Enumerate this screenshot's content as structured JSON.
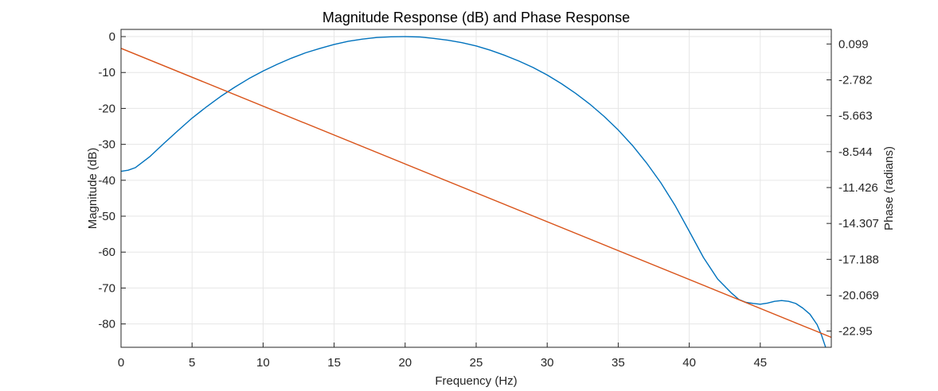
{
  "chart_data": {
    "type": "line",
    "title": "Magnitude Response (dB) and Phase Response",
    "xlabel": "Frequency (Hz)",
    "ylabel_left": "Magnitude (dB)",
    "ylabel_right": "Phase (radians)",
    "xlim": [
      0,
      50
    ],
    "ylim_left": [
      -86.5,
      2
    ],
    "ylim_right": [
      -24.25,
      1.27
    ],
    "x_ticks": [
      0,
      5,
      10,
      15,
      20,
      25,
      30,
      35,
      40,
      45
    ],
    "y_ticks_left": [
      0,
      -10,
      -20,
      -30,
      -40,
      -50,
      -60,
      -70,
      -80
    ],
    "y_ticks_right": [
      0.099,
      -2.782,
      -5.663,
      -8.544,
      -11.426,
      -14.307,
      -17.188,
      -20.069,
      -22.95
    ],
    "y_tick_labels_right": [
      "0.099",
      "-2.782",
      "-5.663",
      "-8.544",
      "-11.426",
      "-14.307",
      "-17.188",
      "-20.069",
      "-22.95"
    ],
    "grid": true,
    "series": [
      {
        "axis": "left",
        "color": "#0072BD",
        "x": [
          0,
          0.5,
          1,
          2,
          3,
          4,
          5,
          6,
          7,
          8,
          9,
          10,
          11,
          12,
          13,
          14,
          15,
          16,
          17,
          18,
          19,
          20,
          21,
          22,
          23,
          24,
          25,
          26,
          27,
          28,
          29,
          30,
          31,
          32,
          33,
          34,
          35,
          36,
          37,
          38,
          39,
          40,
          41,
          42,
          43,
          43.5,
          44,
          44.5,
          45,
          45.5,
          46,
          46.5,
          47,
          47.5,
          48,
          48.5,
          49,
          49.3,
          49.6
        ],
        "y": [
          -37.5,
          -37.2,
          -36.5,
          -33.5,
          -29.8,
          -26.2,
          -22.7,
          -19.6,
          -16.7,
          -14.1,
          -11.7,
          -9.6,
          -7.7,
          -6.0,
          -4.5,
          -3.3,
          -2.2,
          -1.3,
          -0.7,
          -0.25,
          -0.05,
          0,
          -0.1,
          -0.5,
          -1.0,
          -1.7,
          -2.6,
          -3.8,
          -5.2,
          -6.8,
          -8.6,
          -10.7,
          -13.1,
          -15.8,
          -18.8,
          -22.2,
          -26.0,
          -30.3,
          -35.2,
          -40.7,
          -47.0,
          -54.2,
          -61.5,
          -67.5,
          -71.5,
          -73.2,
          -74.0,
          -74.3,
          -74.5,
          -74.2,
          -73.7,
          -73.5,
          -73.7,
          -74.3,
          -75.6,
          -77.3,
          -80.2,
          -83.0,
          -86.5
        ]
      },
      {
        "axis": "right",
        "color": "#D95319",
        "x": [
          0,
          50
        ],
        "y": [
          -0.25,
          -23.45
        ]
      }
    ]
  }
}
